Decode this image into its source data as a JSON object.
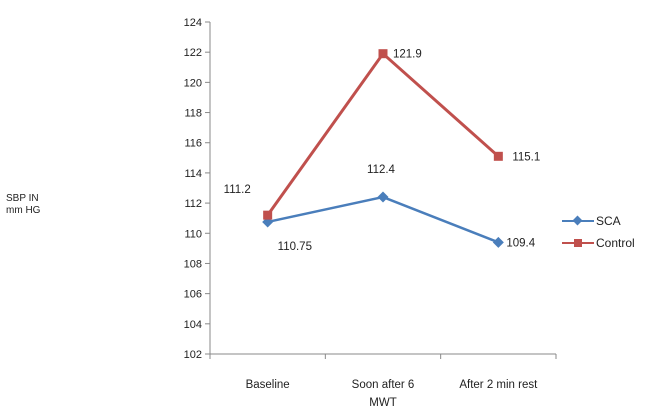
{
  "chart_data": {
    "type": "line",
    "title": "",
    "xlabel": "",
    "ylabel_lines": [
      "SBP IN",
      "mm HG"
    ],
    "categories": [
      "Baseline",
      "Soon after 6 MWT",
      "After 2 min rest"
    ],
    "category_lines": [
      [
        "Baseline"
      ],
      [
        "Soon after 6",
        "MWT"
      ],
      [
        "After 2 min rest"
      ]
    ],
    "ylim": [
      102,
      124
    ],
    "yticks": [
      102,
      104,
      106,
      108,
      110,
      112,
      114,
      116,
      118,
      120,
      122,
      124
    ],
    "grid": false,
    "legend_position": "right",
    "series": [
      {
        "name": "SCA",
        "values": [
          110.75,
          112.4,
          109.4
        ],
        "labels": [
          "110.75",
          "112.4",
          "109.4"
        ],
        "color": "#4a7ebb",
        "marker": "diamond"
      },
      {
        "name": "Control",
        "values": [
          111.2,
          121.9,
          115.1
        ],
        "labels": [
          "111.2",
          "121.9",
          "115.1"
        ],
        "color": "#c0504d",
        "marker": "square"
      }
    ]
  }
}
